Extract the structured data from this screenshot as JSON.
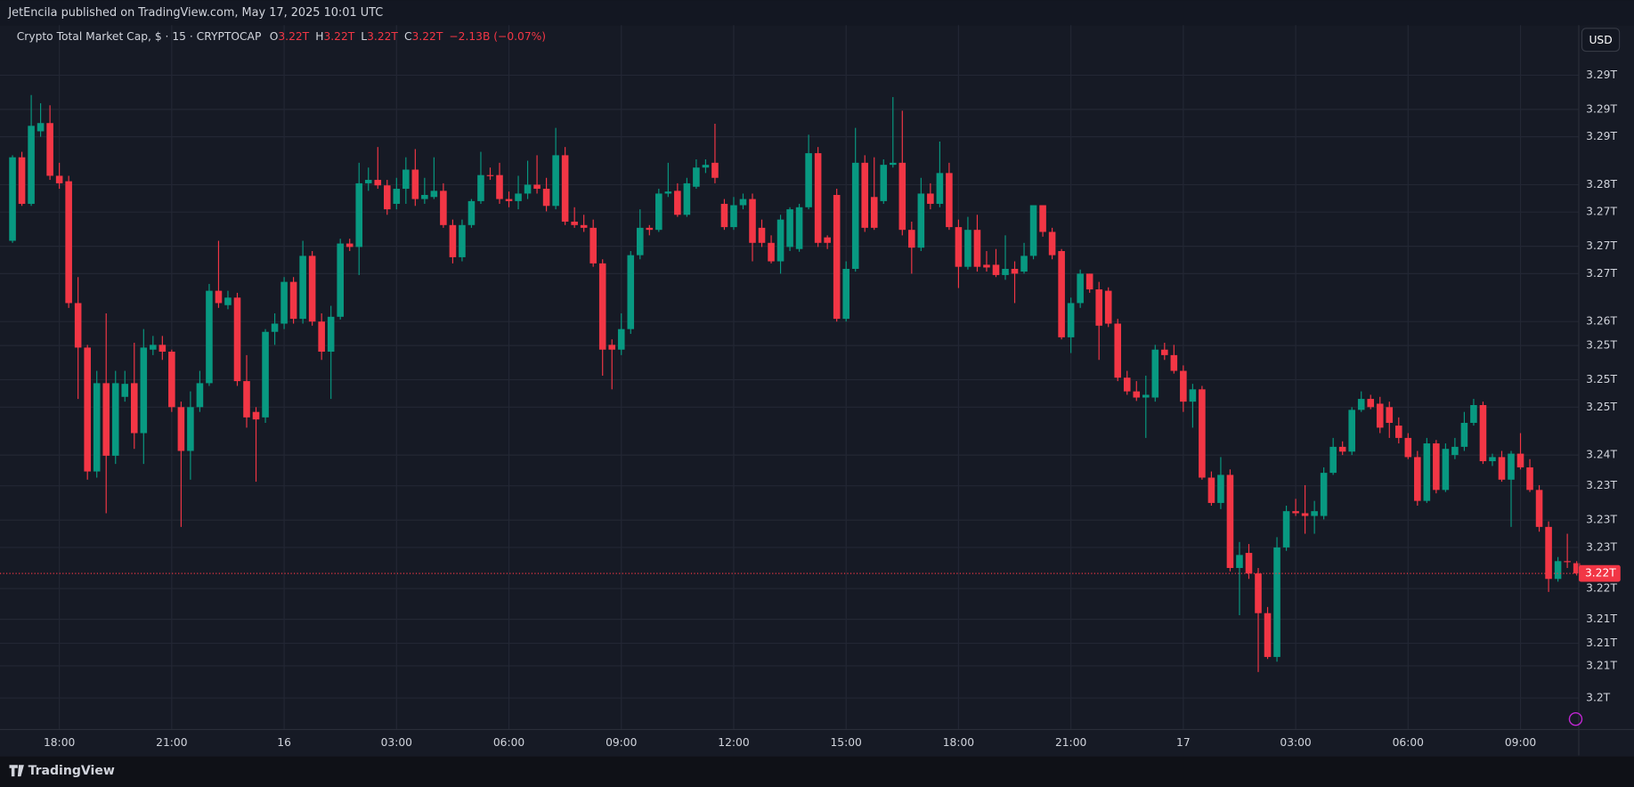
{
  "header": "JetEncila published on TradingView.com, May 17, 2025 10:01 UTC",
  "footer_brand": "TradingView",
  "currency": "USD",
  "chart_data": {
    "type": "candlestick",
    "symbol": "Crypto Total Market Cap, $ · 15 · CRYPTOCAP",
    "legend": [
      {
        "key": "O",
        "value": "3.22T"
      },
      {
        "key": "H",
        "value": "3.22T"
      },
      {
        "key": "L",
        "value": "3.22T"
      },
      {
        "key": "C",
        "value": "3.22T"
      }
    ],
    "change": "−2.13B (−0.07%)",
    "last_price_label": "3.22T",
    "up_color": "#089981",
    "down_color": "#f23645",
    "grid": true,
    "ylim": [
      3.1984,
      3.3013
    ],
    "yticks": [
      {
        "value": 3.203,
        "label": "3.2T"
      },
      {
        "value": 3.2077,
        "label": "3.21T"
      },
      {
        "value": 3.211,
        "label": "3.21T"
      },
      {
        "value": 3.2145,
        "label": "3.21T"
      },
      {
        "value": 3.219,
        "label": "3.22T"
      },
      {
        "value": 3.225,
        "label": "3.23T"
      },
      {
        "value": 3.229,
        "label": "3.23T"
      },
      {
        "value": 3.234,
        "label": "3.23T"
      },
      {
        "value": 3.2385,
        "label": "3.24T"
      },
      {
        "value": 3.2455,
        "label": "3.25T"
      },
      {
        "value": 3.2495,
        "label": "3.25T"
      },
      {
        "value": 3.2545,
        "label": "3.25T"
      },
      {
        "value": 3.258,
        "label": "3.26T"
      },
      {
        "value": 3.265,
        "label": "3.27T"
      },
      {
        "value": 3.269,
        "label": "3.27T"
      },
      {
        "value": 3.274,
        "label": "3.27T"
      },
      {
        "value": 3.278,
        "label": "3.28T"
      },
      {
        "value": 3.285,
        "label": "3.29T"
      },
      {
        "value": 3.289,
        "label": "3.29T"
      },
      {
        "value": 3.294,
        "label": "3.29T"
      }
    ],
    "categories": [
      null,
      null,
      null,
      null,
      null,
      "18:00",
      null,
      null,
      null,
      null,
      null,
      null,
      null,
      null,
      null,
      null,
      null,
      "21:00",
      null,
      null,
      null,
      null,
      null,
      null,
      null,
      null,
      null,
      null,
      null,
      "16",
      null,
      null,
      null,
      null,
      null,
      null,
      null,
      null,
      null,
      null,
      null,
      "03:00",
      null,
      null,
      null,
      null,
      null,
      null,
      null,
      null,
      null,
      null,
      null,
      "06:00",
      null,
      null,
      null,
      null,
      null,
      null,
      null,
      null,
      null,
      null,
      null,
      "09:00",
      null,
      null,
      null,
      null,
      null,
      null,
      null,
      null,
      null,
      null,
      null,
      "12:00",
      null,
      null,
      null,
      null,
      null,
      null,
      null,
      null,
      null,
      null,
      null,
      "15:00",
      null,
      null,
      null,
      null,
      null,
      null,
      null,
      null,
      null,
      null,
      null,
      "18:00",
      null,
      null,
      null,
      null,
      null,
      null,
      null,
      null,
      null,
      null,
      null,
      "21:00",
      null,
      null,
      null,
      null,
      null,
      null,
      null,
      null,
      null,
      null,
      null,
      "17",
      null,
      null,
      null,
      null,
      null,
      null,
      null,
      null,
      null,
      null,
      null,
      "03:00",
      null,
      null,
      null,
      null,
      null,
      null,
      null,
      null,
      null,
      null,
      null,
      "06:00",
      null,
      null,
      null,
      null,
      null,
      null,
      null,
      null,
      null,
      null,
      null,
      "09:00",
      null,
      null,
      null,
      null,
      null,
      null
    ],
    "candles": [
      [
        3.2698,
        3.2823,
        3.2695,
        3.282
      ],
      [
        3.282,
        3.2828,
        3.2749,
        3.2752
      ],
      [
        3.2752,
        3.2911,
        3.2749,
        3.2866
      ],
      [
        3.2858,
        3.2899,
        3.285,
        3.287
      ],
      [
        3.287,
        3.2896,
        3.2787,
        3.2793
      ],
      [
        3.2793,
        3.2812,
        3.2774,
        3.2782
      ],
      [
        3.2785,
        3.2793,
        3.26,
        3.2607
      ],
      [
        3.2607,
        3.2645,
        3.2467,
        3.2542
      ],
      [
        3.2542,
        3.2546,
        3.2349,
        3.2361
      ],
      [
        3.2361,
        3.2508,
        3.2352,
        3.249
      ],
      [
        3.249,
        3.2592,
        3.23,
        3.2384
      ],
      [
        3.2384,
        3.2508,
        3.2372,
        3.249
      ],
      [
        3.247,
        3.2508,
        3.2463,
        3.2489
      ],
      [
        3.249,
        3.2549,
        3.2394,
        3.2417
      ],
      [
        3.2417,
        3.2569,
        3.2372,
        3.2542
      ],
      [
        3.2539,
        3.2559,
        3.2531,
        3.2546
      ],
      [
        3.2546,
        3.2559,
        3.2524,
        3.2536
      ],
      [
        3.2536,
        3.2539,
        3.2448,
        3.2455
      ],
      [
        3.2455,
        3.2463,
        3.228,
        3.2391
      ],
      [
        3.2391,
        3.2478,
        3.2349,
        3.2455
      ],
      [
        3.2455,
        3.2508,
        3.2448,
        3.249
      ],
      [
        3.249,
        3.2635,
        3.2486,
        3.2625
      ],
      [
        3.2625,
        3.2698,
        3.26,
        3.2607
      ],
      [
        3.2604,
        3.2625,
        3.2598,
        3.2615
      ],
      [
        3.2615,
        3.2622,
        3.2486,
        3.2493
      ],
      [
        3.2493,
        3.2531,
        3.2425,
        3.244
      ],
      [
        3.2448,
        3.2455,
        3.2346,
        3.2437
      ],
      [
        3.244,
        3.2569,
        3.2432,
        3.2565
      ],
      [
        3.2565,
        3.2592,
        3.2546,
        3.2577
      ],
      [
        3.2577,
        3.2645,
        3.2569,
        3.2638
      ],
      [
        3.2638,
        3.2645,
        3.2577,
        3.2584
      ],
      [
        3.2584,
        3.2698,
        3.2577,
        3.2676
      ],
      [
        3.2676,
        3.2683,
        3.2574,
        3.258
      ],
      [
        3.258,
        3.2592,
        3.2524,
        3.2536
      ],
      [
        3.2536,
        3.2603,
        3.2467,
        3.2587
      ],
      [
        3.2587,
        3.2701,
        3.2583,
        3.2694
      ],
      [
        3.2694,
        3.2701,
        3.2683,
        3.2689
      ],
      [
        3.2689,
        3.2812,
        3.2648,
        3.2782
      ],
      [
        3.2782,
        3.2805,
        3.2771,
        3.2787
      ],
      [
        3.2787,
        3.2835,
        3.2774,
        3.2779
      ],
      [
        3.2779,
        3.2787,
        3.2736,
        3.2744
      ],
      [
        3.2752,
        3.279,
        3.2744,
        3.2774
      ],
      [
        3.2774,
        3.282,
        3.2752,
        3.2802
      ],
      [
        3.2802,
        3.2832,
        3.2749,
        3.2759
      ],
      [
        3.2759,
        3.279,
        3.2752,
        3.2765
      ],
      [
        3.2762,
        3.282,
        3.2759,
        3.2771
      ],
      [
        3.2771,
        3.2782,
        3.2717,
        3.2721
      ],
      [
        3.2721,
        3.2729,
        3.2665,
        3.2674
      ],
      [
        3.2674,
        3.2729,
        3.2668,
        3.2721
      ],
      [
        3.2721,
        3.2759,
        3.2717,
        3.2756
      ],
      [
        3.2756,
        3.2828,
        3.2752,
        3.2794
      ],
      [
        3.2794,
        3.2805,
        3.2787,
        3.2793
      ],
      [
        3.2794,
        3.2812,
        3.2752,
        3.2759
      ],
      [
        3.2759,
        3.277,
        3.2747,
        3.2756
      ],
      [
        3.2756,
        3.2793,
        3.2744,
        3.2767
      ],
      [
        3.2767,
        3.2815,
        3.2759,
        3.278
      ],
      [
        3.278,
        3.2823,
        3.2767,
        3.2774
      ],
      [
        3.2774,
        3.279,
        3.2741,
        3.2749
      ],
      [
        3.2749,
        3.2863,
        3.2744,
        3.2823
      ],
      [
        3.2823,
        3.2835,
        3.2721,
        3.2726
      ],
      [
        3.2726,
        3.2747,
        3.2717,
        3.2721
      ],
      [
        3.2721,
        3.2736,
        3.2711,
        3.2717
      ],
      [
        3.2717,
        3.2729,
        3.266,
        3.2665
      ],
      [
        3.2665,
        3.2671,
        3.2501,
        3.2539
      ],
      [
        3.2546,
        3.2554,
        3.2481,
        3.2539
      ],
      [
        3.2539,
        3.2592,
        3.2531,
        3.2569
      ],
      [
        3.2569,
        3.2683,
        3.2562,
        3.2677
      ],
      [
        3.2677,
        3.2744,
        3.2671,
        3.2717
      ],
      [
        3.2717,
        3.2721,
        3.2706,
        3.2714
      ],
      [
        3.2714,
        3.2774,
        3.2711,
        3.2767
      ],
      [
        3.2767,
        3.2812,
        3.2762,
        3.277
      ],
      [
        3.2771,
        3.2782,
        3.2733,
        3.2736
      ],
      [
        3.2736,
        3.279,
        3.2733,
        3.2782
      ],
      [
        3.2777,
        3.2817,
        3.2774,
        3.2805
      ],
      [
        3.2805,
        3.2817,
        3.2797,
        3.2809
      ],
      [
        3.2812,
        3.2869,
        3.2782,
        3.279
      ],
      [
        3.2752,
        3.2759,
        3.2714,
        3.2718
      ],
      [
        3.2718,
        3.2762,
        3.2714,
        3.275
      ],
      [
        3.275,
        3.2767,
        3.2744,
        3.2759
      ],
      [
        3.2759,
        3.2767,
        3.2668,
        3.2695
      ],
      [
        3.2717,
        3.2729,
        3.2689,
        3.2695
      ],
      [
        3.2695,
        3.2706,
        3.2665,
        3.2668
      ],
      [
        3.2668,
        3.2736,
        3.265,
        3.2729
      ],
      [
        3.2689,
        3.2747,
        3.2683,
        3.2744
      ],
      [
        3.2686,
        3.2752,
        3.2682,
        3.2747
      ],
      [
        3.2747,
        3.2853,
        3.2744,
        3.2826
      ],
      [
        3.2826,
        3.2835,
        3.2689,
        3.2695
      ],
      [
        3.2703,
        3.2706,
        3.2686,
        3.2695
      ],
      [
        3.2765,
        3.2774,
        3.258,
        3.2584
      ],
      [
        3.2584,
        3.2668,
        3.258,
        3.2657
      ],
      [
        3.2657,
        3.2863,
        3.2653,
        3.2812
      ],
      [
        3.2812,
        3.2823,
        3.2711,
        3.2717
      ],
      [
        3.2762,
        3.282,
        3.2714,
        3.2717
      ],
      [
        3.2756,
        3.2817,
        3.2752,
        3.2809
      ],
      [
        3.2809,
        3.2908,
        3.2805,
        3.2812
      ],
      [
        3.2812,
        3.2888,
        3.2706,
        3.2714
      ],
      [
        3.2714,
        3.2726,
        3.265,
        3.2688
      ],
      [
        3.2688,
        3.279,
        3.2683,
        3.2767
      ],
      [
        3.2767,
        3.2782,
        3.2744,
        3.2752
      ],
      [
        3.2752,
        3.2843,
        3.2747,
        3.2797
      ],
      [
        3.2797,
        3.2812,
        3.2714,
        3.2718
      ],
      [
        3.2718,
        3.2729,
        3.2629,
        3.266
      ],
      [
        3.266,
        3.2733,
        3.2656,
        3.2714
      ],
      [
        3.2714,
        3.2736,
        3.2653,
        3.266
      ],
      [
        3.2663,
        3.2683,
        3.2653,
        3.2659
      ],
      [
        3.2663,
        3.2686,
        3.2645,
        3.2648
      ],
      [
        3.2648,
        3.2706,
        3.2641,
        3.2657
      ],
      [
        3.2657,
        3.2668,
        3.2607,
        3.265
      ],
      [
        3.2653,
        3.2695,
        3.265,
        3.2676
      ],
      [
        3.2676,
        3.275,
        3.2671,
        3.275
      ],
      [
        3.275,
        3.275,
        3.2704,
        3.2711
      ],
      [
        3.2711,
        3.2717,
        3.2671,
        3.2677
      ],
      [
        3.2683,
        3.2686,
        3.2554,
        3.2557
      ],
      [
        3.2557,
        3.2615,
        3.2534,
        3.2607
      ],
      [
        3.2607,
        3.2656,
        3.26,
        3.265
      ],
      [
        3.265,
        3.265,
        3.2622,
        3.2627
      ],
      [
        3.2627,
        3.2638,
        3.2524,
        3.2574
      ],
      [
        3.2625,
        3.263,
        3.2572,
        3.2577
      ],
      [
        3.2577,
        3.2584,
        3.2493,
        3.2498
      ],
      [
        3.2498,
        3.2508,
        3.2473,
        3.2478
      ],
      [
        3.2478,
        3.2493,
        3.2464,
        3.2469
      ],
      [
        3.2469,
        3.2501,
        3.241,
        3.2473
      ],
      [
        3.2469,
        3.2546,
        3.2463,
        3.2539
      ],
      [
        3.2539,
        3.2549,
        3.2524,
        3.2531
      ],
      [
        3.2531,
        3.2546,
        3.2504,
        3.2508
      ],
      [
        3.2508,
        3.2516,
        3.2448,
        3.2463
      ],
      [
        3.2463,
        3.2489,
        3.2425,
        3.2481
      ],
      [
        3.2481,
        3.2486,
        3.2349,
        3.2352
      ],
      [
        3.2352,
        3.2361,
        3.2311,
        3.2315
      ],
      [
        3.2315,
        3.2382,
        3.2306,
        3.2356
      ],
      [
        3.2356,
        3.2364,
        3.2215,
        3.222
      ],
      [
        3.222,
        3.2258,
        3.2151,
        3.2239
      ],
      [
        3.2242,
        3.2255,
        3.2204,
        3.2212
      ],
      [
        3.2212,
        3.222,
        3.2068,
        3.2154
      ],
      [
        3.2154,
        3.2163,
        3.2087,
        3.209
      ],
      [
        3.209,
        3.2265,
        3.2083,
        3.225
      ],
      [
        3.225,
        3.2311,
        3.2245,
        3.2303
      ],
      [
        3.2303,
        3.2321,
        3.2296,
        3.23
      ],
      [
        3.23,
        3.2341,
        3.227,
        3.2296
      ],
      [
        3.2296,
        3.2318,
        3.227,
        3.2303
      ],
      [
        3.2296,
        3.2367,
        3.2291,
        3.2359
      ],
      [
        3.2359,
        3.241,
        3.2356,
        3.2397
      ],
      [
        3.2397,
        3.2405,
        3.2385,
        3.239
      ],
      [
        3.239,
        3.2455,
        3.2385,
        3.2451
      ],
      [
        3.2451,
        3.2478,
        3.2448,
        3.2467
      ],
      [
        3.2467,
        3.2473,
        3.2452,
        3.2455
      ],
      [
        3.246,
        3.247,
        3.2417,
        3.2425
      ],
      [
        3.2455,
        3.2463,
        3.241,
        3.2432
      ],
      [
        3.2428,
        3.244,
        3.2402,
        3.241
      ],
      [
        3.241,
        3.2417,
        3.2379,
        3.2382
      ],
      [
        3.2382,
        3.2391,
        3.2311,
        3.2318
      ],
      [
        3.2318,
        3.241,
        3.2315,
        3.2402
      ],
      [
        3.2402,
        3.2407,
        3.2329,
        3.2334
      ],
      [
        3.2334,
        3.2402,
        3.2331,
        3.2394
      ],
      [
        3.2385,
        3.241,
        3.2379,
        3.2397
      ],
      [
        3.2397,
        3.2448,
        3.2391,
        3.2432
      ],
      [
        3.2432,
        3.2467,
        3.2428,
        3.2458
      ],
      [
        3.2458,
        3.2463,
        3.2372,
        3.2376
      ],
      [
        3.2376,
        3.2387,
        3.2369,
        3.2382
      ],
      [
        3.2382,
        3.2391,
        3.2346,
        3.2349
      ],
      [
        3.2349,
        3.2391,
        3.228,
        3.2387
      ],
      [
        3.2387,
        3.2417,
        3.2364,
        3.2367
      ],
      [
        3.2367,
        3.2379,
        3.2331,
        3.2334
      ],
      [
        3.2334,
        3.2341,
        3.2273,
        3.228
      ],
      [
        3.228,
        3.2288,
        3.2185,
        3.2204
      ],
      [
        3.2204,
        3.2236,
        3.22,
        3.223
      ],
      [
        3.223,
        3.227,
        3.222,
        3.2229
      ],
      [
        3.2227,
        3.223,
        3.2209,
        3.2212
      ]
    ]
  }
}
